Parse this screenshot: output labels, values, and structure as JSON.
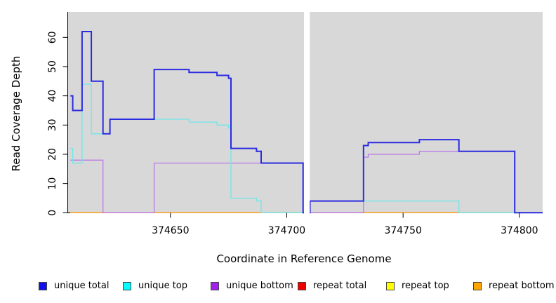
{
  "figure": {
    "background": "#ffffff",
    "panel_color": "#d8d8d8",
    "axis_color": "#000000"
  },
  "chart_data": {
    "type": "line",
    "step": true,
    "title": "",
    "xlabel": "Coordinate in Reference Genome",
    "ylabel": "Read Coverage Depth",
    "x_ticks": [
      374650,
      374700,
      374750,
      374800
    ],
    "y_ticks": [
      0,
      10,
      20,
      30,
      40,
      50,
      60
    ],
    "xlim": [
      374606,
      374810
    ],
    "ylim": [
      0,
      60
    ],
    "grid": false,
    "legend_position": "bottom",
    "panel_gap_x": [
      374707.4,
      374709.9
    ],
    "series": [
      {
        "name": "unique total",
        "color": "#2b2be0",
        "line_width": 2,
        "points": [
          [
            374607,
            40
          ],
          [
            374608,
            35
          ],
          [
            374612,
            62
          ],
          [
            374616,
            45
          ],
          [
            374621,
            27
          ],
          [
            374624,
            32
          ],
          [
            374643,
            49
          ],
          [
            374658,
            48
          ],
          [
            374670,
            47
          ],
          [
            374675,
            46
          ],
          [
            374676,
            22
          ],
          [
            374687,
            21
          ],
          [
            374689,
            17
          ],
          [
            374707,
            0
          ],
          [
            374710,
            4
          ],
          [
            374733,
            23
          ],
          [
            374735,
            24
          ],
          [
            374757,
            25
          ],
          [
            374774,
            21
          ],
          [
            374798,
            0
          ]
        ],
        "end": 374810
      },
      {
        "name": "unique top",
        "color": "#6fe6ea",
        "line_width": 1.3,
        "points": [
          [
            374607,
            22
          ],
          [
            374608,
            17
          ],
          [
            374612,
            44
          ],
          [
            374616,
            27
          ],
          [
            374624,
            32
          ],
          [
            374658,
            31
          ],
          [
            374670,
            30
          ],
          [
            374675,
            29
          ],
          [
            374676,
            5
          ],
          [
            374687,
            4
          ],
          [
            374689,
            0
          ],
          [
            374710,
            4
          ],
          [
            374774,
            0
          ]
        ],
        "end": 374810
      },
      {
        "name": "unique bottom",
        "color": "#ba7ae6",
        "line_width": 1.3,
        "points": [
          [
            374607,
            18
          ],
          [
            374621,
            0
          ],
          [
            374643,
            17
          ],
          [
            374707,
            0
          ],
          [
            374733,
            19
          ],
          [
            374735,
            20
          ],
          [
            374757,
            21
          ],
          [
            374798,
            0
          ]
        ],
        "end": 374810
      },
      {
        "name": "repeat total",
        "color": "#dd2222",
        "line_width": 1.2,
        "points": [
          [
            374607,
            0
          ]
        ],
        "end": 374810
      },
      {
        "name": "repeat top",
        "color": "#e8e838",
        "line_width": 1.2,
        "points": [
          [
            374607,
            0
          ]
        ],
        "end": 374810
      },
      {
        "name": "repeat bottom",
        "color": "#ffa01e",
        "line_width": 1.5,
        "points": [
          [
            374607,
            0
          ]
        ],
        "end": 374810
      }
    ]
  },
  "legend": {
    "items": [
      {
        "label": "unique total",
        "swatch": "#1010ee"
      },
      {
        "label": "unique top",
        "swatch": "#00ffff"
      },
      {
        "label": "unique bottom",
        "swatch": "#a020f0"
      },
      {
        "label": "repeat total",
        "swatch": "#ee0000"
      },
      {
        "label": "repeat top",
        "swatch": "#ffff00"
      },
      {
        "label": "repeat bottom",
        "swatch": "#ffa500"
      }
    ]
  }
}
